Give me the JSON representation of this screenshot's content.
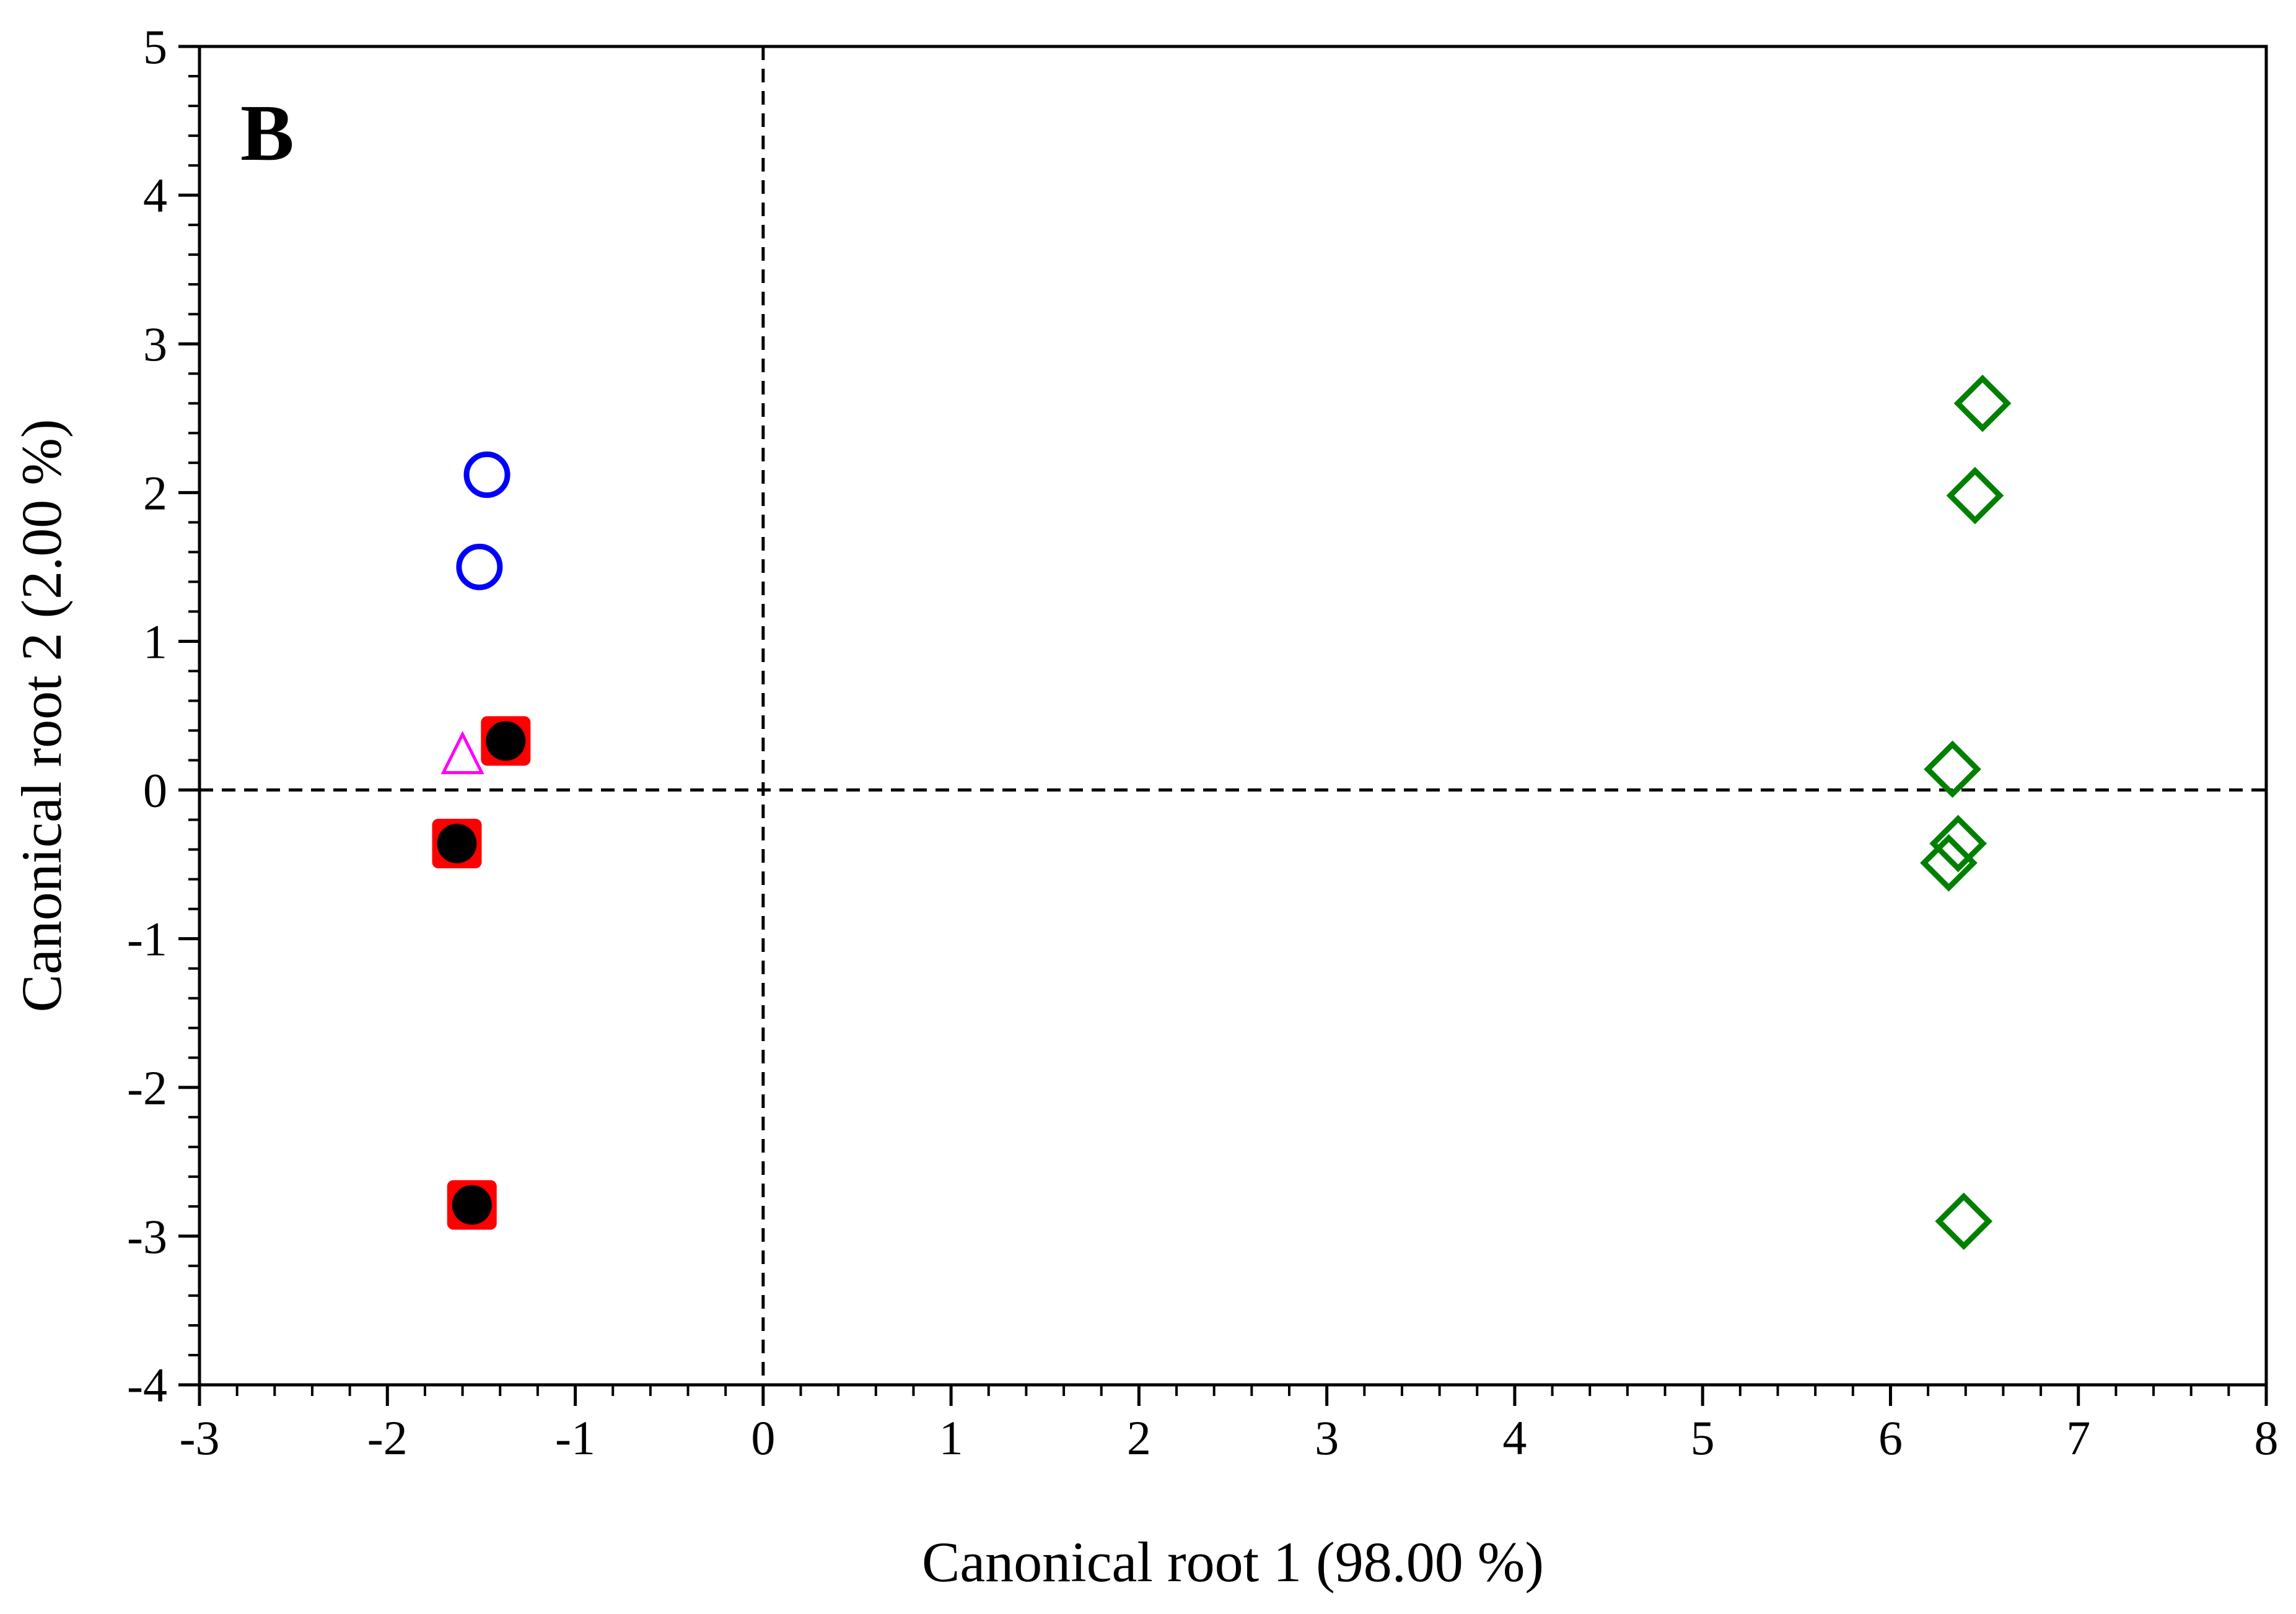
{
  "chart_data": {
    "type": "scatter",
    "panel_label": "B",
    "xlabel": "Canonical root 1 (98.00 %)",
    "ylabel": "Canonical root 2 (2.00 %)",
    "xlim": [
      -3,
      8
    ],
    "ylim": [
      -4,
      5
    ],
    "x_ticks": [
      "-3",
      "-2",
      "-1",
      "0",
      "1",
      "2",
      "3",
      "4",
      "5",
      "6",
      "7",
      "8"
    ],
    "y_ticks": [
      "-4",
      "-3",
      "-2",
      "-1",
      "0",
      "1",
      "2",
      "3",
      "4",
      "5"
    ],
    "reference_lines": {
      "x": 0,
      "y": 0,
      "style": "dashed"
    },
    "series": [
      {
        "name": "blue-circles",
        "marker": "circle-open",
        "color": "#0000ff",
        "points": [
          [
            -1.47,
            2.12
          ],
          [
            -1.51,
            1.5
          ]
        ]
      },
      {
        "name": "magenta-triangles",
        "marker": "triangle-open",
        "color": "#ff00ff",
        "points": [
          [
            -1.6,
            0.22
          ],
          [
            -1.62,
            -0.38
          ]
        ]
      },
      {
        "name": "red-squares",
        "marker": "square-filled",
        "color": "#ff0000",
        "points": [
          [
            -1.37,
            0.33
          ],
          [
            -1.63,
            -0.36
          ],
          [
            -1.55,
            -2.79
          ]
        ]
      },
      {
        "name": "black-dots",
        "marker": "circle-filled",
        "color": "#000000",
        "points": [
          [
            -1.37,
            0.33
          ],
          [
            -1.63,
            -0.36
          ],
          [
            -1.55,
            -2.79
          ]
        ]
      },
      {
        "name": "green-diamonds",
        "marker": "diamond-open",
        "color": "#008000",
        "points": [
          [
            6.49,
            2.6
          ],
          [
            6.45,
            1.98
          ],
          [
            6.33,
            0.14
          ],
          [
            6.36,
            -0.36
          ],
          [
            6.31,
            -0.49
          ],
          [
            6.39,
            -2.9
          ]
        ]
      }
    ]
  }
}
